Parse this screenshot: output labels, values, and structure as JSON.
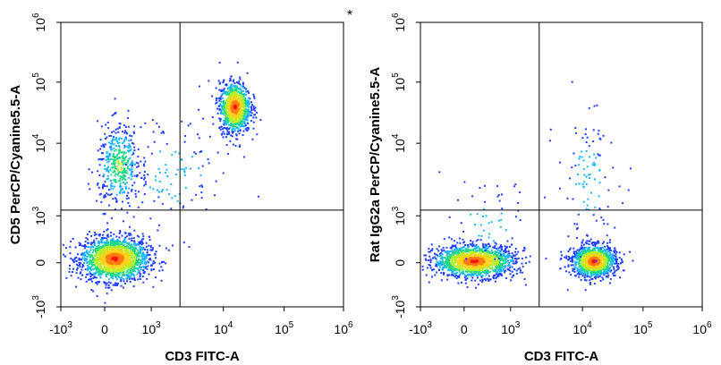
{
  "figure": {
    "asterisk": "*"
  },
  "colors": {
    "background": "#ffffff",
    "axis": "#000000",
    "density_scale": [
      "#1f3dff",
      "#18b4ff",
      "#22d68a",
      "#b6f02a",
      "#ffd21a",
      "#ff7a10",
      "#ff1010"
    ]
  },
  "chart_data": [
    {
      "type": "scatter",
      "subtype": "flow-cytometry-pseudocolor-dot-plot",
      "title": "",
      "xlabel": "CD3 FITC-A",
      "ylabel": "CD5 PerCP/Cyanine5.5-A",
      "x_scale": "biexponential",
      "y_scale": "biexponential",
      "xlim": [
        -1000,
        1000000
      ],
      "ylim": [
        -1000,
        1000000
      ],
      "x_ticks": [
        {
          "base": "-10",
          "exp": "3",
          "value": -1000
        },
        {
          "base": "0",
          "exp": "",
          "value": 0
        },
        {
          "base": "10",
          "exp": "3",
          "value": 1000
        },
        {
          "base": "10",
          "exp": "4",
          "value": 10000
        },
        {
          "base": "10",
          "exp": "5",
          "value": 100000
        },
        {
          "base": "10",
          "exp": "6",
          "value": 1000000
        }
      ],
      "y_ticks": [
        {
          "base": "-10",
          "exp": "3",
          "value": -1000
        },
        {
          "base": "0",
          "exp": "",
          "value": 0
        },
        {
          "base": "10",
          "exp": "3",
          "value": 1000
        },
        {
          "base": "10",
          "exp": "4",
          "value": 10000
        },
        {
          "base": "10",
          "exp": "5",
          "value": 100000
        },
        {
          "base": "10",
          "exp": "6",
          "value": 1000000
        }
      ],
      "quadrant_gate": {
        "x": 2500,
        "y": 1200
      },
      "populations": [
        {
          "x_center": 200,
          "y_center": 100,
          "x_spread": 0.11,
          "y_spread": 0.07,
          "density": "high",
          "count": 1700
        },
        {
          "x_center": 15000,
          "y_center": 40000,
          "x_spread": 0.05,
          "y_spread": 0.08,
          "density": "high",
          "count": 1000
        },
        {
          "x_center": 300,
          "y_center": 5000,
          "x_spread": 0.07,
          "y_spread": 0.13,
          "density": "low",
          "count": 420
        },
        {
          "x_center": 2000,
          "y_center": 4000,
          "x_spread": 0.2,
          "y_spread": 0.2,
          "density": "sparse",
          "count": 120
        }
      ]
    },
    {
      "type": "scatter",
      "subtype": "flow-cytometry-pseudocolor-dot-plot",
      "title": "",
      "xlabel": "CD3 FITC-A",
      "ylabel": "Rat IgG2a PerCP/Cyanine5.5-A",
      "x_scale": "biexponential",
      "y_scale": "biexponential",
      "xlim": [
        -1000,
        1000000
      ],
      "ylim": [
        -1000,
        1000000
      ],
      "x_ticks": [
        {
          "base": "-10",
          "exp": "3",
          "value": -1000
        },
        {
          "base": "0",
          "exp": "",
          "value": 0
        },
        {
          "base": "10",
          "exp": "3",
          "value": 1000
        },
        {
          "base": "10",
          "exp": "4",
          "value": 10000
        },
        {
          "base": "10",
          "exp": "5",
          "value": 100000
        },
        {
          "base": "10",
          "exp": "6",
          "value": 1000000
        }
      ],
      "y_ticks": [
        {
          "base": "-10",
          "exp": "3",
          "value": -1000
        },
        {
          "base": "0",
          "exp": "",
          "value": 0
        },
        {
          "base": "10",
          "exp": "3",
          "value": 1000
        },
        {
          "base": "10",
          "exp": "4",
          "value": 10000
        },
        {
          "base": "10",
          "exp": "5",
          "value": 100000
        },
        {
          "base": "10",
          "exp": "6",
          "value": 1000000
        }
      ],
      "quadrant_gate": {
        "x": 2500,
        "y": 1200
      },
      "populations": [
        {
          "x_center": 200,
          "y_center": 50,
          "x_spread": 0.13,
          "y_spread": 0.05,
          "density": "high",
          "count": 1500
        },
        {
          "x_center": 15000,
          "y_center": 50,
          "x_spread": 0.07,
          "y_spread": 0.05,
          "density": "high",
          "count": 1200
        },
        {
          "x_center": 12000,
          "y_center": 3000,
          "x_spread": 0.1,
          "y_spread": 0.25,
          "density": "sparse",
          "count": 110
        },
        {
          "x_center": 500,
          "y_center": 800,
          "x_spread": 0.15,
          "y_spread": 0.15,
          "density": "sparse",
          "count": 60
        }
      ]
    }
  ]
}
